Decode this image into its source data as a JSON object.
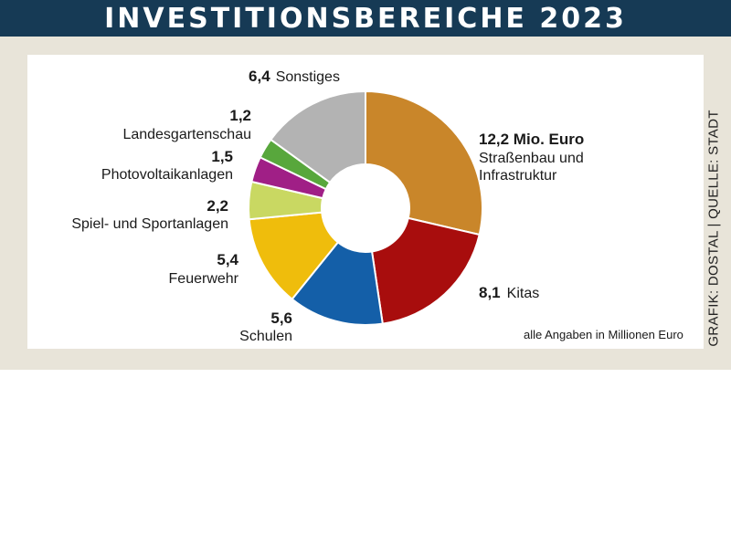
{
  "title": "INVESTITIONSBEREICHE 2023",
  "credit": "GRAFIK: DOSTAL | QUELLE: STADT",
  "note": "alle Angaben in Millionen Euro",
  "chart_data": {
    "type": "pie",
    "variant": "donut",
    "unit": "Mio. Euro",
    "slices": [
      {
        "label": "Straßenbau und Infrastruktur",
        "value": 12.2,
        "value_text": "12,2 Mio. Euro",
        "color": "#c9862a"
      },
      {
        "label": "Kitas",
        "value": 8.1,
        "value_text": "8,1",
        "color": "#a80d0d"
      },
      {
        "label": "Schulen",
        "value": 5.6,
        "value_text": "5,6",
        "color": "#145fa8"
      },
      {
        "label": "Feuerwehr",
        "value": 5.4,
        "value_text": "5,4",
        "color": "#efbd0c"
      },
      {
        "label": "Spiel- und Sportanlagen",
        "value": 2.2,
        "value_text": "2,2",
        "color": "#c9d862"
      },
      {
        "label": "Photovoltaikanlagen",
        "value": 1.5,
        "value_text": "1,5",
        "color": "#a01f86"
      },
      {
        "label": "Landesgartenschau",
        "value": 1.2,
        "value_text": "1,2",
        "color": "#58a73c"
      },
      {
        "label": "Sonstiges",
        "value": 6.4,
        "value_text": "6,4",
        "color": "#b3b3b3"
      }
    ]
  }
}
